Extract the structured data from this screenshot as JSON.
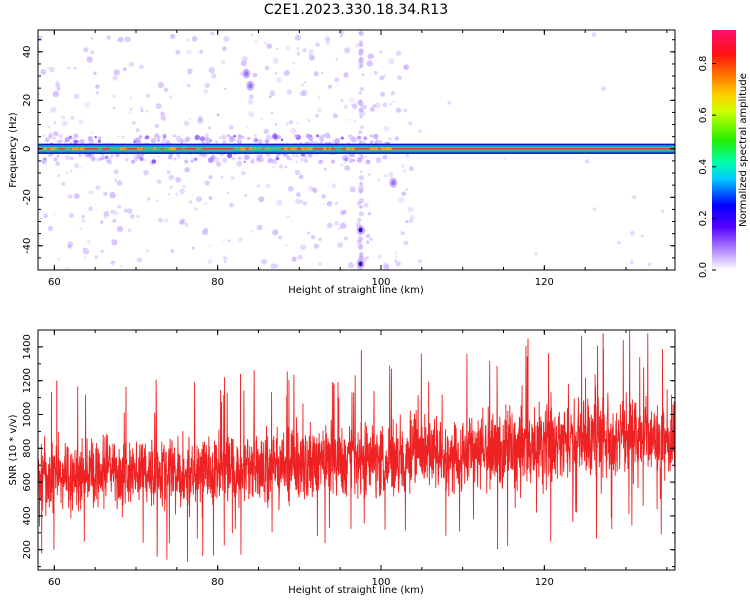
{
  "title": "C2E1.2023.330.18.34.R13",
  "colors": {
    "snr_line": "#ee2222",
    "band_core": "#e0463a",
    "band_edge": "#00a8c8",
    "speckle": "#c8a8ff",
    "axis": "#000000"
  },
  "chart_data": [
    {
      "type": "heatmap",
      "xlabel": "Height of straight line (km)",
      "ylabel": "Frequency (Hz)",
      "xlim": [
        58,
        136
      ],
      "ylim": [
        -50,
        49
      ],
      "xticks": [
        {
          "value": 60,
          "label": "60"
        },
        {
          "value": 80,
          "label": "80"
        },
        {
          "value": 100,
          "label": "100"
        },
        {
          "value": 120,
          "label": "120"
        }
      ],
      "yticks": [
        {
          "value": 40,
          "label": "40"
        },
        {
          "value": 20,
          "label": "20"
        },
        {
          "value": 0,
          "label": "0"
        },
        {
          "value": -20,
          "label": "-20"
        },
        {
          "value": -40,
          "label": "-40"
        }
      ],
      "colorbar": {
        "label": "Normalized spectral amplitude",
        "range": [
          0,
          0.93
        ],
        "ticks": [
          {
            "value": 0.0,
            "label": "0.0"
          },
          {
            "value": 0.2,
            "label": "0.2"
          },
          {
            "value": 0.4,
            "label": "0.4"
          },
          {
            "value": 0.6,
            "label": "0.6"
          },
          {
            "value": 0.8,
            "label": "0.8"
          }
        ]
      },
      "features": {
        "band_center_hz": 0,
        "band_halfwidth_hz": 1.5,
        "noisy_band_end_km": 101,
        "vertical_stripe_km": 97.5,
        "isolated_blobs": [
          {
            "x": 97.5,
            "y": -33.5
          },
          {
            "x": 97.5,
            "y": -47.5
          },
          {
            "x": 101.5,
            "y": -14
          },
          {
            "x": 84,
            "y": 26
          },
          {
            "x": 83.5,
            "y": 31
          }
        ]
      }
    },
    {
      "type": "line",
      "xlabel": "Height of straight line (km)",
      "ylabel": "SNR (10 * v/v)",
      "xlim": [
        58,
        136
      ],
      "ylim": [
        80,
        1500
      ],
      "xticks": [
        {
          "value": 60,
          "label": "60"
        },
        {
          "value": 80,
          "label": "80"
        },
        {
          "value": 100,
          "label": "100"
        },
        {
          "value": 120,
          "label": "120"
        }
      ],
      "yticks": [
        {
          "value": 200,
          "label": "200"
        },
        {
          "value": 400,
          "label": "400"
        },
        {
          "value": 600,
          "label": "600"
        },
        {
          "value": 800,
          "label": "800"
        },
        {
          "value": 1000,
          "label": "1000"
        },
        {
          "value": 1200,
          "label": "1200"
        },
        {
          "value": 1400,
          "label": "1400"
        }
      ],
      "trend": {
        "x": [
          58,
          70,
          80,
          90,
          100,
          110,
          120,
          130,
          136
        ],
        "mean": [
          640,
          650,
          670,
          700,
          740,
          780,
          820,
          860,
          870
        ],
        "spread": [
          230,
          240,
          250,
          260,
          260,
          270,
          280,
          280,
          280
        ]
      },
      "spikes": [
        {
          "x": 97.6,
          "y": 1380
        },
        {
          "x": 127.2,
          "y": 1480
        },
        {
          "x": 118,
          "y": 1450
        },
        {
          "x": 82.8,
          "y": 1240
        },
        {
          "x": 60.3,
          "y": 1200
        }
      ]
    }
  ]
}
